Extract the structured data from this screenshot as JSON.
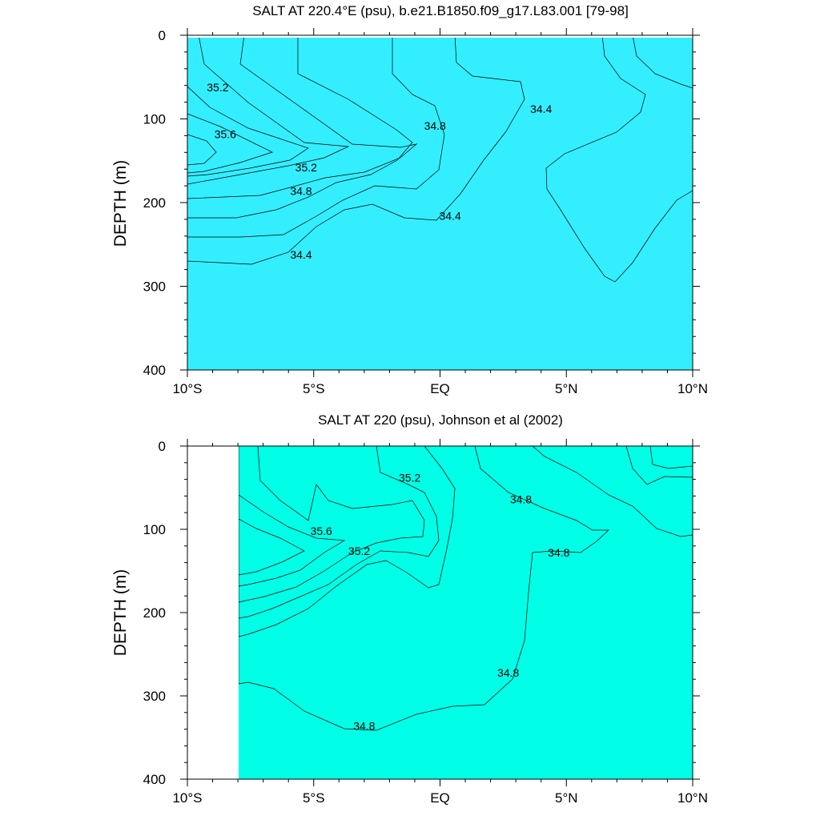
{
  "chart_data": [
    {
      "type": "contour",
      "title": "SALT AT 220.4°E (psu), b.e21.B1850.f09_g17.L83.001 [79-98]",
      "xlabel": "",
      "ylabel": "DEPTH (m)",
      "xlim": [
        -10,
        10
      ],
      "ylim": [
        400,
        0
      ],
      "x_tick_labels": [
        "10°S",
        "5°S",
        "EQ",
        "5°N",
        "10°N"
      ],
      "x_tick_values": [
        -10,
        -5,
        0,
        5,
        10
      ],
      "y_tick_labels": [
        "0",
        "100",
        "200",
        "300",
        "400"
      ],
      "y_tick_values": [
        0,
        100,
        200,
        300,
        400
      ],
      "contour_interval": 0.2,
      "colors": {
        "band_34_0": "#0096ff",
        "band_34_2": "#00d2ff",
        "band_34_4": "#33eeff",
        "band_34_6": "#00ffe6",
        "band_34_8": "#00ffa8",
        "band_35_0": "#00f550",
        "band_35_2": "#38e000",
        "band_35_4": "#a6ff00",
        "band_35_6": "#ffff00",
        "band_35_8": "#ffd23c"
      },
      "contour_labels": [
        {
          "text": "35.2",
          "lat": -8.8,
          "depth": 62
        },
        {
          "text": "35.6",
          "lat": -8.5,
          "depth": 118
        },
        {
          "text": "35.2",
          "lat": -5.3,
          "depth": 158
        },
        {
          "text": "34.8",
          "lat": -5.5,
          "depth": 186
        },
        {
          "text": "34.8",
          "lat": -0.2,
          "depth": 108
        },
        {
          "text": "34.4",
          "lat": 4.0,
          "depth": 88
        },
        {
          "text": "34.4",
          "lat": 0.4,
          "depth": 216
        },
        {
          "text": "34.4",
          "lat": -5.5,
          "depth": 262
        }
      ]
    },
    {
      "type": "contour",
      "title": "SALT AT 220 (psu), Johnson et al (2002)",
      "xlabel": "",
      "ylabel": "DEPTH (m)",
      "xlim": [
        -10,
        10
      ],
      "ylim": [
        400,
        0
      ],
      "data_lat_range": [
        -8,
        10
      ],
      "x_tick_labels": [
        "10°S",
        "5°S",
        "EQ",
        "5°N",
        "10°N"
      ],
      "x_tick_values": [
        -10,
        -5,
        0,
        5,
        10
      ],
      "y_tick_labels": [
        "0",
        "100",
        "200",
        "300",
        "400"
      ],
      "y_tick_values": [
        0,
        100,
        200,
        300,
        400
      ],
      "contour_interval": 0.2,
      "colors": {
        "band_34_2": "#00d2ff",
        "band_34_4": "#33eeff",
        "band_34_6": "#00ffe6",
        "band_34_8": "#00ffa8",
        "band_35_0": "#00f550",
        "band_35_2": "#38e000",
        "band_35_4": "#a6ff00",
        "band_35_6": "#ffff00",
        "band_35_8": "#ffd23c"
      },
      "contour_labels": [
        {
          "text": "35.2",
          "lat": -1.2,
          "depth": 38
        },
        {
          "text": "35.6",
          "lat": -4.7,
          "depth": 102
        },
        {
          "text": "35.2",
          "lat": -3.2,
          "depth": 126
        },
        {
          "text": "34.8",
          "lat": 3.2,
          "depth": 64
        },
        {
          "text": "34.8",
          "lat": 4.7,
          "depth": 128
        },
        {
          "text": "34.8",
          "lat": 2.7,
          "depth": 272
        },
        {
          "text": "34.8",
          "lat": -3.0,
          "depth": 336
        }
      ]
    }
  ]
}
